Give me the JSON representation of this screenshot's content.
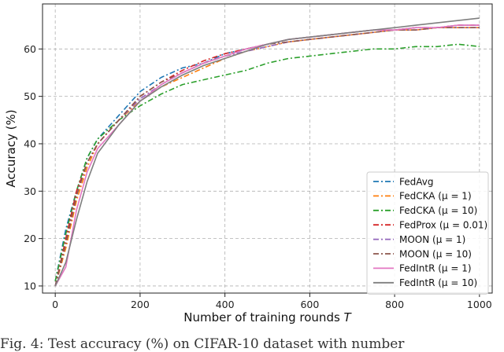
{
  "caption": "Fig. 4: Test accuracy (%) on CIFAR-10 dataset with number",
  "chart_data": {
    "type": "line",
    "title": "",
    "xlabel_prefix": "Number of training rounds ",
    "xlabel_var": "T",
    "ylabel": "Accuracy (%)",
    "xlim": [
      -30,
      1030
    ],
    "ylim": [
      8.5,
      69.5
    ],
    "xticks": [
      0,
      200,
      400,
      600,
      800,
      1000
    ],
    "yticks": [
      10,
      20,
      30,
      40,
      50,
      60
    ],
    "grid": true,
    "legend_position": "lower-right",
    "series": [
      {
        "name": "FedAvg",
        "color": "#1f77b4",
        "dash": "7,3,2,3",
        "points": [
          [
            0,
            11
          ],
          [
            25,
            22
          ],
          [
            50,
            30
          ],
          [
            75,
            37
          ],
          [
            100,
            41
          ],
          [
            150,
            46
          ],
          [
            200,
            51
          ],
          [
            250,
            54
          ],
          [
            300,
            56
          ],
          [
            350,
            57
          ],
          [
            400,
            59
          ],
          [
            450,
            60
          ],
          [
            500,
            61
          ],
          [
            550,
            62
          ],
          [
            600,
            62.5
          ],
          [
            650,
            63
          ],
          [
            700,
            63.5
          ],
          [
            750,
            64
          ],
          [
            800,
            64
          ],
          [
            850,
            64.5
          ],
          [
            900,
            64.5
          ],
          [
            950,
            65
          ],
          [
            1000,
            65
          ]
        ]
      },
      {
        "name": "FedCKA (μ = 1)",
        "color": "#ff7f0e",
        "dash": "7,3,2,3",
        "points": [
          [
            0,
            10
          ],
          [
            25,
            18
          ],
          [
            50,
            28
          ],
          [
            75,
            35
          ],
          [
            100,
            40
          ],
          [
            150,
            45
          ],
          [
            200,
            49
          ],
          [
            250,
            52
          ],
          [
            300,
            54
          ],
          [
            350,
            56
          ],
          [
            400,
            58
          ],
          [
            450,
            59.5
          ],
          [
            500,
            60.5
          ],
          [
            550,
            61.5
          ],
          [
            600,
            62
          ],
          [
            650,
            62.5
          ],
          [
            700,
            63
          ],
          [
            750,
            63.5
          ],
          [
            800,
            64
          ],
          [
            850,
            64
          ],
          [
            900,
            64.5
          ],
          [
            950,
            64.5
          ],
          [
            1000,
            64.5
          ]
        ]
      },
      {
        "name": "FedCKA (μ = 10)",
        "color": "#2ca02c",
        "dash": "7,3,2,3",
        "points": [
          [
            0,
            11
          ],
          [
            25,
            21
          ],
          [
            50,
            30
          ],
          [
            75,
            37
          ],
          [
            100,
            41
          ],
          [
            150,
            45
          ],
          [
            200,
            48
          ],
          [
            250,
            50.5
          ],
          [
            300,
            52.5
          ],
          [
            350,
            53.5
          ],
          [
            400,
            54.5
          ],
          [
            450,
            55.5
          ],
          [
            500,
            57
          ],
          [
            550,
            58
          ],
          [
            600,
            58.5
          ],
          [
            650,
            59
          ],
          [
            700,
            59.5
          ],
          [
            750,
            60
          ],
          [
            800,
            60
          ],
          [
            850,
            60.5
          ],
          [
            900,
            60.5
          ],
          [
            950,
            61
          ],
          [
            1000,
            60.5
          ]
        ]
      },
      {
        "name": "FedProx (μ = 0.01)",
        "color": "#d62728",
        "dash": "7,3,2,3",
        "points": [
          [
            0,
            10
          ],
          [
            25,
            20
          ],
          [
            50,
            30
          ],
          [
            75,
            36
          ],
          [
            100,
            40
          ],
          [
            150,
            45
          ],
          [
            200,
            50
          ],
          [
            250,
            53
          ],
          [
            300,
            55.5
          ],
          [
            350,
            57.5
          ],
          [
            400,
            59
          ],
          [
            450,
            60
          ],
          [
            500,
            61
          ],
          [
            550,
            62
          ],
          [
            600,
            62.5
          ],
          [
            650,
            63
          ],
          [
            700,
            63.5
          ],
          [
            750,
            64
          ],
          [
            800,
            64
          ],
          [
            850,
            64.5
          ],
          [
            900,
            64.5
          ],
          [
            950,
            65
          ],
          [
            1000,
            65
          ]
        ]
      },
      {
        "name": "MOON (μ = 1)",
        "color": "#9467bd",
        "dash": "7,3,2,3",
        "points": [
          [
            0,
            10
          ],
          [
            25,
            19
          ],
          [
            50,
            29
          ],
          [
            75,
            36
          ],
          [
            100,
            40
          ],
          [
            150,
            45
          ],
          [
            200,
            49.5
          ],
          [
            250,
            52.5
          ],
          [
            300,
            55
          ],
          [
            350,
            57
          ],
          [
            400,
            58.5
          ],
          [
            450,
            59.5
          ],
          [
            500,
            60.5
          ],
          [
            550,
            61.5
          ],
          [
            600,
            62
          ],
          [
            650,
            62.5
          ],
          [
            700,
            63
          ],
          [
            750,
            63.5
          ],
          [
            800,
            64
          ],
          [
            850,
            64
          ],
          [
            900,
            64.5
          ],
          [
            950,
            64.5
          ],
          [
            1000,
            64.5
          ]
        ]
      },
      {
        "name": "MOON (μ = 10)",
        "color": "#8c564b",
        "dash": "7,3,2,3",
        "points": [
          [
            0,
            10
          ],
          [
            25,
            19
          ],
          [
            50,
            29
          ],
          [
            75,
            36
          ],
          [
            100,
            40
          ],
          [
            150,
            45
          ],
          [
            200,
            50
          ],
          [
            250,
            53
          ],
          [
            300,
            55
          ],
          [
            350,
            57
          ],
          [
            400,
            58.5
          ],
          [
            450,
            60
          ],
          [
            500,
            61
          ],
          [
            550,
            61.5
          ],
          [
            600,
            62
          ],
          [
            650,
            62.5
          ],
          [
            700,
            63
          ],
          [
            750,
            63.5
          ],
          [
            800,
            64
          ],
          [
            850,
            64
          ],
          [
            900,
            64.5
          ],
          [
            950,
            64.5
          ],
          [
            1000,
            64.5
          ]
        ]
      },
      {
        "name": "FedIntR (μ = 1)",
        "color": "#e377c2",
        "dash": "",
        "points": [
          [
            0,
            10
          ],
          [
            25,
            14
          ],
          [
            50,
            26
          ],
          [
            75,
            34
          ],
          [
            100,
            39
          ],
          [
            150,
            44
          ],
          [
            200,
            49
          ],
          [
            250,
            52.5
          ],
          [
            300,
            55
          ],
          [
            350,
            57
          ],
          [
            400,
            58.5
          ],
          [
            450,
            60
          ],
          [
            500,
            61
          ],
          [
            550,
            62
          ],
          [
            600,
            62.5
          ],
          [
            650,
            63
          ],
          [
            700,
            63.5
          ],
          [
            750,
            64
          ],
          [
            800,
            64
          ],
          [
            850,
            64.5
          ],
          [
            900,
            64.5
          ],
          [
            950,
            65
          ],
          [
            1000,
            65
          ]
        ]
      },
      {
        "name": "FedIntR (μ = 10)",
        "color": "#7f7f7f",
        "dash": "",
        "points": [
          [
            0,
            10
          ],
          [
            25,
            15
          ],
          [
            50,
            24
          ],
          [
            75,
            32
          ],
          [
            100,
            38
          ],
          [
            150,
            44
          ],
          [
            200,
            49
          ],
          [
            250,
            52
          ],
          [
            300,
            54.5
          ],
          [
            350,
            56.5
          ],
          [
            400,
            58
          ],
          [
            450,
            59.5
          ],
          [
            500,
            61
          ],
          [
            550,
            62
          ],
          [
            600,
            62.5
          ],
          [
            650,
            63
          ],
          [
            700,
            63.5
          ],
          [
            750,
            64
          ],
          [
            800,
            64.5
          ],
          [
            850,
            65
          ],
          [
            900,
            65.5
          ],
          [
            950,
            66
          ],
          [
            1000,
            66.5
          ]
        ]
      }
    ]
  }
}
